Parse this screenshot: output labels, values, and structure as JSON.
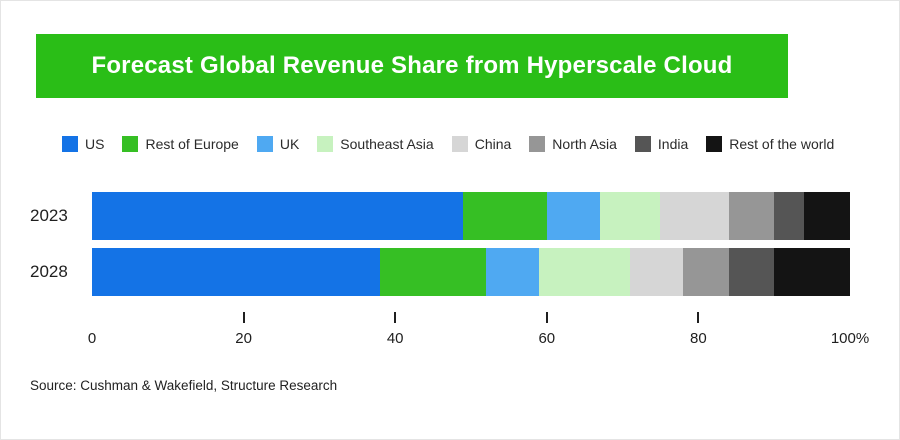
{
  "title": "Forecast Global Revenue Share from Hyperscale Cloud",
  "source": "Source: Cushman & Wakefield, Structure Research",
  "banner_color": "#2abe17",
  "chart_data": {
    "type": "bar",
    "stacked": true,
    "orientation": "horizontal",
    "title": "Forecast Global Revenue Share from Hyperscale Cloud",
    "categories": [
      "2023",
      "2028"
    ],
    "series": [
      {
        "name": "US",
        "color": "#1473e6",
        "values": [
          49,
          38
        ]
      },
      {
        "name": "Rest of Europe",
        "color": "#36bf24",
        "values": [
          11,
          14
        ]
      },
      {
        "name": "UK",
        "color": "#4fa9f2",
        "values": [
          7,
          7
        ]
      },
      {
        "name": "Southeast Asia",
        "color": "#c7f2bf",
        "values": [
          8,
          12
        ]
      },
      {
        "name": "China",
        "color": "#d6d6d6",
        "values": [
          9,
          7
        ]
      },
      {
        "name": "North Asia",
        "color": "#969696",
        "values": [
          6,
          6
        ]
      },
      {
        "name": "India",
        "color": "#555555",
        "values": [
          4,
          6
        ]
      },
      {
        "name": "Rest of the world",
        "color": "#141414",
        "values": [
          6,
          10
        ]
      }
    ],
    "xlim": [
      0,
      100
    ],
    "x_ticks": [
      0,
      20,
      40,
      60,
      80,
      100
    ],
    "x_tick_labels": [
      "0",
      "20",
      "40",
      "60",
      "80",
      "100%"
    ],
    "legend_position": "top",
    "grid": false
  }
}
